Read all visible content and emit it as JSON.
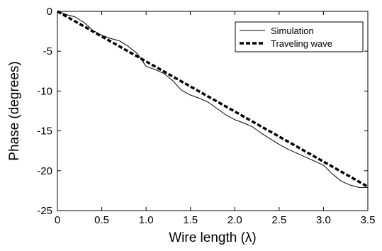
{
  "chart_data": {
    "type": "line",
    "xlabel": "Wire length (λ)",
    "ylabel": "Phase (degrees)",
    "xlim": [
      0,
      3.5
    ],
    "ylim": [
      -25,
      0
    ],
    "x_ticks": [
      0,
      0.5,
      1.0,
      1.5,
      2.0,
      2.5,
      3.0,
      3.5
    ],
    "x_tick_labels": [
      "0",
      "0.5",
      "1.0",
      "1.5",
      "2.0",
      "2.5",
      "3.0",
      "3.5"
    ],
    "y_ticks": [
      0,
      -5,
      -10,
      -15,
      -20,
      -25
    ],
    "y_tick_labels": [
      "0",
      "-5",
      "-10",
      "-15",
      "-20",
      "-25"
    ],
    "grid": false,
    "legend_position": "top-right",
    "series": [
      {
        "name": "Simulation",
        "style": "solid-thin",
        "color": "#000000",
        "x": [
          0,
          0.1,
          0.2,
          0.3,
          0.4,
          0.5,
          0.6,
          0.7,
          0.8,
          0.9,
          1.0,
          1.1,
          1.2,
          1.3,
          1.4,
          1.5,
          1.6,
          1.7,
          1.8,
          1.9,
          2.0,
          2.1,
          2.2,
          2.3,
          2.4,
          2.5,
          2.6,
          2.7,
          2.8,
          2.9,
          3.0,
          3.1,
          3.2,
          3.3,
          3.4,
          3.5
        ],
        "y": [
          0.0,
          -0.4,
          -0.7,
          -1.4,
          -2.4,
          -3.0,
          -3.4,
          -3.7,
          -4.4,
          -5.3,
          -6.9,
          -7.3,
          -7.8,
          -8.7,
          -9.9,
          -10.5,
          -10.9,
          -11.4,
          -12.2,
          -13.0,
          -13.6,
          -14.0,
          -14.5,
          -15.3,
          -16.0,
          -16.7,
          -17.3,
          -17.8,
          -18.3,
          -18.8,
          -19.3,
          -20.4,
          -21.3,
          -21.8,
          -22.1,
          -22.1
        ]
      },
      {
        "name": "Traveling wave",
        "style": "dashed-thick",
        "color": "#000000",
        "x": [
          0,
          3.5
        ],
        "y": [
          0,
          -22.0
        ]
      }
    ]
  }
}
